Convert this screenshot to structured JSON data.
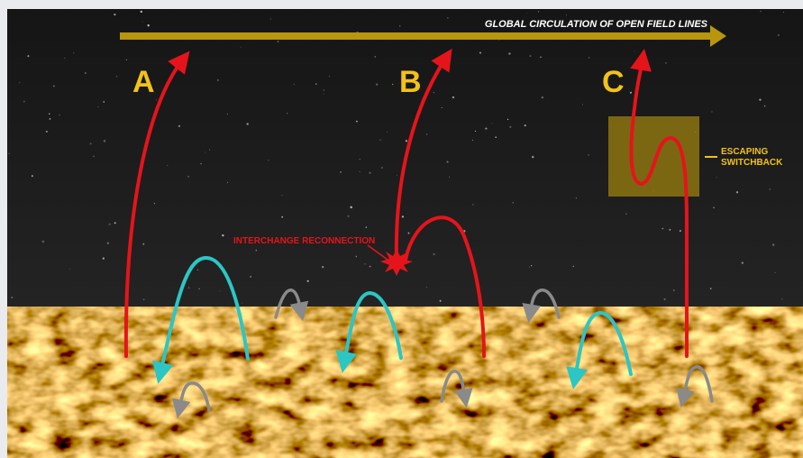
{
  "title": "GLOBAL CIRCULATION OF OPEN FIELD LINES",
  "field_lines": [
    "A",
    "B",
    "C"
  ],
  "annotations": {
    "reconnection": "INTERCHANGE RECONNECTION",
    "switchback": [
      "ESCAPING",
      "SWITCHBACK"
    ]
  }
}
